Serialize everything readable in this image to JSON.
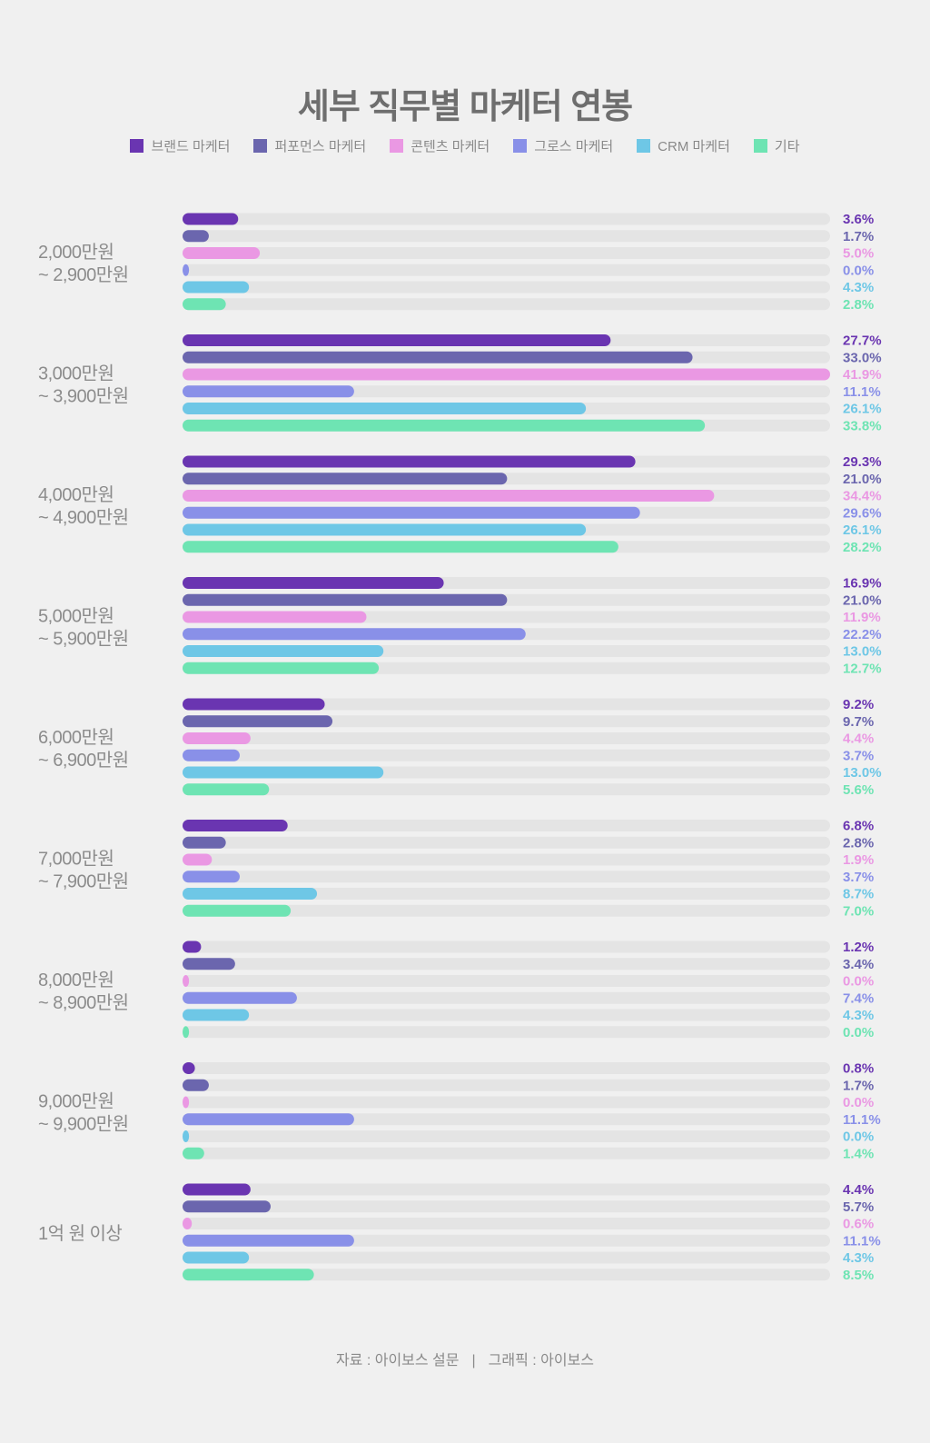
{
  "title": "세부 직무별 마케터 연봉",
  "footer": {
    "source": "자료 : 아이보스 설문",
    "separator": "|",
    "graphic": "그래픽 : 아이보스"
  },
  "chart_data": {
    "type": "bar",
    "orientation": "horizontal",
    "title": "세부 직무별 마케터 연봉",
    "value_suffix": "%",
    "xlim": [
      0,
      41.9
    ],
    "legend_position": "top",
    "grid": false,
    "track_color": "#e4e4e4",
    "categories": [
      [
        "2,000만원",
        "~ 2,900만원"
      ],
      [
        "3,000만원",
        "~ 3,900만원"
      ],
      [
        "4,000만원",
        "~ 4,900만원"
      ],
      [
        "5,000만원",
        "~ 5,900만원"
      ],
      [
        "6,000만원",
        "~ 6,900만원"
      ],
      [
        "7,000만원",
        "~ 7,900만원"
      ],
      [
        "8,000만원",
        "~ 8,900만원"
      ],
      [
        "9,000만원",
        "~ 9,900만원"
      ],
      [
        "1억 원 이상"
      ]
    ],
    "series": [
      {
        "name": "브랜드 마케터",
        "color": "#6a35b1",
        "values": [
          3.6,
          27.7,
          29.3,
          16.9,
          9.2,
          6.8,
          1.2,
          0.8,
          4.4
        ]
      },
      {
        "name": "퍼포먼스 마케터",
        "color": "#6b66ae",
        "values": [
          1.7,
          33.0,
          21.0,
          21.0,
          9.7,
          2.8,
          3.4,
          1.7,
          5.7
        ]
      },
      {
        "name": "콘텐츠 마케터",
        "color": "#ea98e3",
        "values": [
          5.0,
          41.9,
          34.4,
          11.9,
          4.4,
          1.9,
          0.0,
          0.0,
          0.6
        ]
      },
      {
        "name": "그로스 마케터",
        "color": "#8990e8",
        "values": [
          0.0,
          11.1,
          29.6,
          22.2,
          3.7,
          3.7,
          7.4,
          11.1,
          11.1
        ]
      },
      {
        "name": "CRM 마케터",
        "color": "#6ec7e6",
        "values": [
          4.3,
          26.1,
          26.1,
          13.0,
          13.0,
          8.7,
          4.3,
          0.0,
          4.3
        ]
      },
      {
        "name": "기타",
        "color": "#6ee4b3",
        "values": [
          2.8,
          33.8,
          28.2,
          12.7,
          5.6,
          7.0,
          0.0,
          1.4,
          8.5
        ]
      }
    ]
  }
}
